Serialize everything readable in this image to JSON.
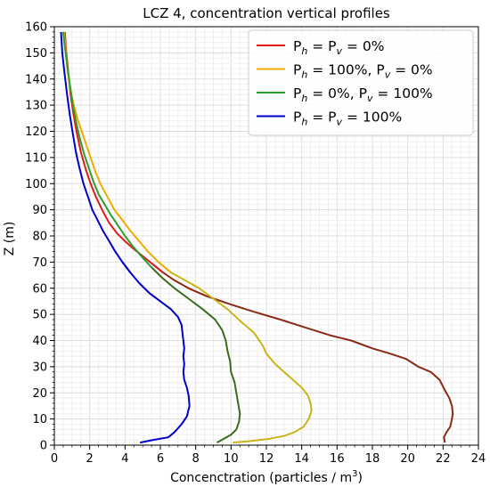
{
  "chart_data": {
    "type": "line",
    "title": "LCZ 4, concentration vertical profiles",
    "xlabel": "Concenctration (particles / m",
    "xlabel_sup": "3",
    "xlabel_end": ")",
    "ylabel": "Z (m)",
    "xlim": [
      0,
      24
    ],
    "ylim": [
      0,
      160
    ],
    "xticks": [
      0,
      2,
      4,
      6,
      8,
      10,
      12,
      14,
      16,
      18,
      20,
      22,
      24
    ],
    "yticks": [
      0,
      10,
      20,
      30,
      40,
      50,
      60,
      70,
      80,
      90,
      100,
      110,
      120,
      130,
      140,
      150,
      160
    ],
    "grid": true,
    "legend_position": "top-right",
    "series": [
      {
        "name": "P_h = P_v = 0%",
        "label_html": [
          "P",
          "h",
          " = P",
          "v",
          " = 0%"
        ],
        "color": "#e31a1c",
        "lower_color": "#8b2a14",
        "x": [
          22.1,
          22.05,
          22.2,
          22.4,
          22.5,
          22.55,
          22.5,
          22.35,
          22.1,
          21.8,
          21.3,
          20.6,
          19.9,
          19.0,
          18.0,
          16.8,
          15.6,
          14.2,
          12.8,
          11.3,
          9.9,
          8.6,
          7.6,
          6.8,
          6.15,
          5.6,
          5.05,
          4.5,
          4.0,
          3.55,
          3.1,
          2.7,
          2.35,
          2.05,
          1.8,
          1.5,
          1.25,
          1.05,
          0.9,
          0.75,
          0.65,
          0.6
        ],
        "y": [
          1,
          3,
          5,
          7,
          10,
          12,
          15,
          18,
          21,
          25,
          28,
          30,
          33,
          35,
          37,
          40,
          42,
          45,
          48,
          51,
          54,
          57,
          60,
          63,
          66,
          69,
          72,
          75,
          78,
          81,
          85,
          90,
          95,
          100,
          105,
          112,
          120,
          128,
          135,
          145,
          152,
          158
        ]
      },
      {
        "name": "P_h = 100%, P_v = 0%",
        "label_html": [
          "P",
          "h",
          " = 100%, P",
          "v",
          " = 0%"
        ],
        "color": "#f2a900",
        "lower_color": "#c9b418",
        "x": [
          10.1,
          11.0,
          12.2,
          13.0,
          13.6,
          14.1,
          14.4,
          14.55,
          14.5,
          14.35,
          14.0,
          13.5,
          13.0,
          12.5,
          12.0,
          11.8,
          11.3,
          10.6,
          9.8,
          9.0,
          8.2,
          7.4,
          6.6,
          5.9,
          5.3,
          4.8,
          4.3,
          3.85,
          3.4,
          3.0,
          2.6,
          2.3,
          2.05,
          1.8,
          1.55,
          1.3,
          1.1,
          0.9,
          0.75,
          0.65,
          0.55
        ],
        "y": [
          1,
          1.5,
          2.5,
          3.5,
          5,
          7,
          10,
          13,
          16,
          19,
          22,
          25,
          28,
          31,
          35,
          38,
          43,
          47,
          52,
          56,
          60,
          63,
          66,
          70,
          74,
          78,
          82,
          86,
          90,
          95,
          100,
          105,
          110,
          115,
          120,
          125,
          130,
          136,
          143,
          150,
          158
        ]
      },
      {
        "name": "P_h = 0%,   P_v = 100%",
        "label_html": [
          "P",
          "h",
          " = 0%,    P",
          "v",
          " = 100%"
        ],
        "color": "#2ca02c",
        "lower_color": "#3a6b1e",
        "x": [
          9.2,
          9.6,
          10.0,
          10.3,
          10.45,
          10.5,
          10.4,
          10.3,
          10.2,
          10.0,
          9.95,
          9.8,
          9.7,
          9.5,
          9.1,
          8.4,
          7.6,
          6.8,
          6.1,
          5.5,
          4.95,
          4.45,
          4.0,
          3.6,
          3.2,
          2.85,
          2.5,
          2.2,
          1.95,
          1.7,
          1.45,
          1.25,
          1.05,
          0.9,
          0.75,
          0.62,
          0.5
        ],
        "y": [
          1,
          2.5,
          4,
          6,
          9,
          12,
          16,
          20,
          24,
          28,
          32,
          36,
          40,
          44,
          48,
          52,
          56,
          60,
          64,
          68,
          72,
          76,
          80,
          84,
          88,
          92,
          96,
          101,
          106,
          111,
          117,
          123,
          130,
          137,
          144,
          151,
          158
        ]
      },
      {
        "name": "P_h = P_v = 100%",
        "label_html": [
          "P",
          "h",
          " = P",
          "v",
          " = 100%"
        ],
        "color": "#0000cc",
        "lower_color": "#0000cc",
        "x": [
          4.85,
          5.6,
          6.45,
          6.8,
          7.2,
          7.5,
          7.65,
          7.6,
          7.5,
          7.35,
          7.3,
          7.35,
          7.3,
          7.35,
          7.3,
          7.25,
          7.2,
          7.0,
          6.6,
          6.0,
          5.4,
          4.8,
          4.3,
          3.85,
          3.45,
          3.1,
          2.75,
          2.45,
          2.15,
          1.9,
          1.65,
          1.42,
          1.22,
          1.05,
          0.88,
          0.72,
          0.58,
          0.45,
          0.38
        ],
        "y": [
          1,
          2,
          3,
          5,
          8,
          11,
          15,
          19,
          22,
          25,
          28,
          31,
          34,
          37,
          40,
          43,
          46,
          49,
          52,
          55,
          58,
          62,
          66,
          70,
          74,
          78,
          82,
          86,
          90,
          95,
          100,
          106,
          112,
          119,
          126,
          134,
          142,
          150,
          158
        ]
      }
    ]
  }
}
